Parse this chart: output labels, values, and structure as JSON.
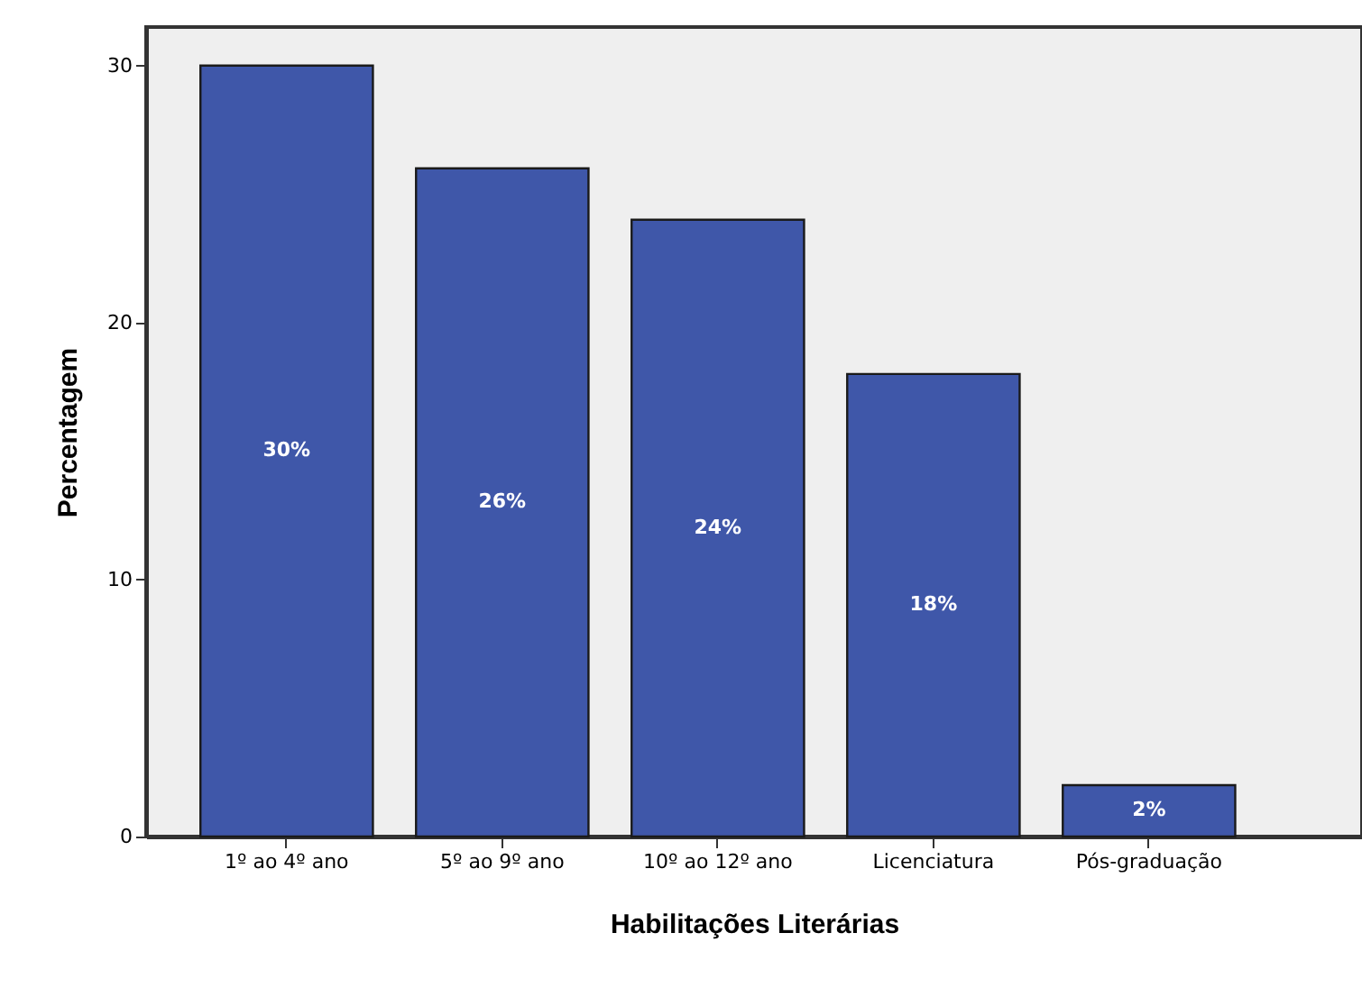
{
  "chart_data": {
    "type": "bar",
    "xlabel": "Habilitações Literárias",
    "ylabel": "Percentagem",
    "categories": [
      "1º ao 4º ano",
      "5º ao 9º ano",
      "10º ao 12º ano",
      "Licenciatura",
      "Pós-graduação"
    ],
    "values": [
      30,
      26,
      24,
      18,
      2
    ],
    "value_labels": [
      "30%",
      "26%",
      "24%",
      "18%",
      "2%"
    ],
    "color": "#3f57a9",
    "ylim": [
      0,
      31.5
    ],
    "yticks": [
      0,
      10,
      20,
      30
    ]
  }
}
